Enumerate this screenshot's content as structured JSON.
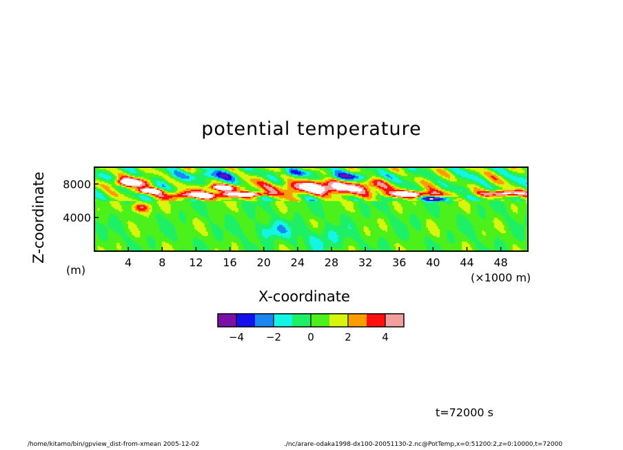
{
  "chart_data": {
    "type": "heatmap",
    "title": "potential temperature",
    "xlabel": "X-coordinate",
    "ylabel": "Z-coordinate",
    "x_unit": "(×1000 m)",
    "y_unit": "(m)",
    "xlim": [
      0,
      51.2
    ],
    "ylim": [
      0,
      10000
    ],
    "x_ticks": [
      4,
      8,
      12,
      16,
      20,
      24,
      28,
      32,
      36,
      40,
      44,
      48
    ],
    "y_ticks": [
      4000,
      8000
    ],
    "colorbar": {
      "levels": [
        -5,
        -4,
        -3,
        -2,
        -1,
        0,
        1,
        2,
        3,
        4,
        5
      ],
      "colors": [
        "#7b0fa8",
        "#1410ee",
        "#1a86f2",
        "#14f5e6",
        "#1ef066",
        "#4cf01a",
        "#d8f50e",
        "#ff9d00",
        "#ff1010",
        "#f59e9e"
      ],
      "tick_labels": [
        "−4",
        "−2",
        "0",
        "2",
        "4"
      ],
      "tick_values": [
        -4,
        -2,
        0,
        2,
        4
      ],
      "out_of_range_color": "#ffffff"
    },
    "features": [
      {
        "kind": "warm_anomaly",
        "x_center": 27.5,
        "z_center": 7600,
        "x_halfwidth": 7.0,
        "z_halfwidth": 900,
        "value": 6
      },
      {
        "kind": "warm_anomaly",
        "x_center": 12.5,
        "z_center": 6700,
        "x_halfwidth": 4.5,
        "z_halfwidth": 500,
        "value": 6
      },
      {
        "kind": "warm_anomaly",
        "x_center": 37.5,
        "z_center": 6800,
        "x_halfwidth": 3.8,
        "z_halfwidth": 450,
        "value": 6
      },
      {
        "kind": "warm_anomaly",
        "x_center": 48.5,
        "z_center": 6900,
        "x_halfwidth": 2.8,
        "z_halfwidth": 400,
        "value": 6
      },
      {
        "kind": "warm_anomaly",
        "x_center": 4.0,
        "z_center": 8200,
        "x_halfwidth": 2.4,
        "z_halfwidth": 600,
        "value": 6
      },
      {
        "kind": "warm_anomaly",
        "x_center": 6.5,
        "z_center": 7200,
        "x_halfwidth": 1.8,
        "z_halfwidth": 350,
        "value": 6
      },
      {
        "kind": "warm_anomaly",
        "x_center": 15.0,
        "z_center": 7600,
        "x_halfwidth": 2.2,
        "z_halfwidth": 400,
        "value": 6
      },
      {
        "kind": "warm_anomaly",
        "x_center": 18.5,
        "z_center": 6800,
        "x_halfwidth": 2.5,
        "z_halfwidth": 300,
        "value": 6
      },
      {
        "kind": "warm_anomaly",
        "x_center": 5.5,
        "z_center": 5200,
        "x_halfwidth": 1.4,
        "z_halfwidth": 700,
        "value": 4
      },
      {
        "kind": "cold_anomaly",
        "x_center": 30.0,
        "z_center": 8900,
        "x_halfwidth": 4.0,
        "z_halfwidth": 500,
        "value": -3
      },
      {
        "kind": "cold_anomaly",
        "x_center": 40.0,
        "z_center": 6300,
        "x_halfwidth": 3.0,
        "z_halfwidth": 300,
        "value": -4
      },
      {
        "kind": "cold_anomaly",
        "x_center": 13.5,
        "z_center": 9000,
        "x_halfwidth": 3.5,
        "z_halfwidth": 600,
        "value": -3
      },
      {
        "kind": "cold_anomaly",
        "x_center": 24.0,
        "z_center": 9400,
        "x_halfwidth": 3.0,
        "z_halfwidth": 400,
        "value": -2
      },
      {
        "kind": "cold_anomaly",
        "x_center": 27.0,
        "z_center": 1500,
        "x_halfwidth": 3.0,
        "z_halfwidth": 1500,
        "value": -1.5
      },
      {
        "kind": "cold_anomaly",
        "x_center": 21.0,
        "z_center": 2500,
        "x_halfwidth": 2.5,
        "z_halfwidth": 1200,
        "value": -2
      }
    ]
  },
  "time_label": "t=72000 s",
  "footer_left": "/home/kitamo/bin/gpview_dist-from-xmean   2005-12-02",
  "footer_right": "./nc/arare-odaka1998-dx100-20051130-2.nc@PotTemp,x=0:51200:2,z=0:10000,t=72000"
}
